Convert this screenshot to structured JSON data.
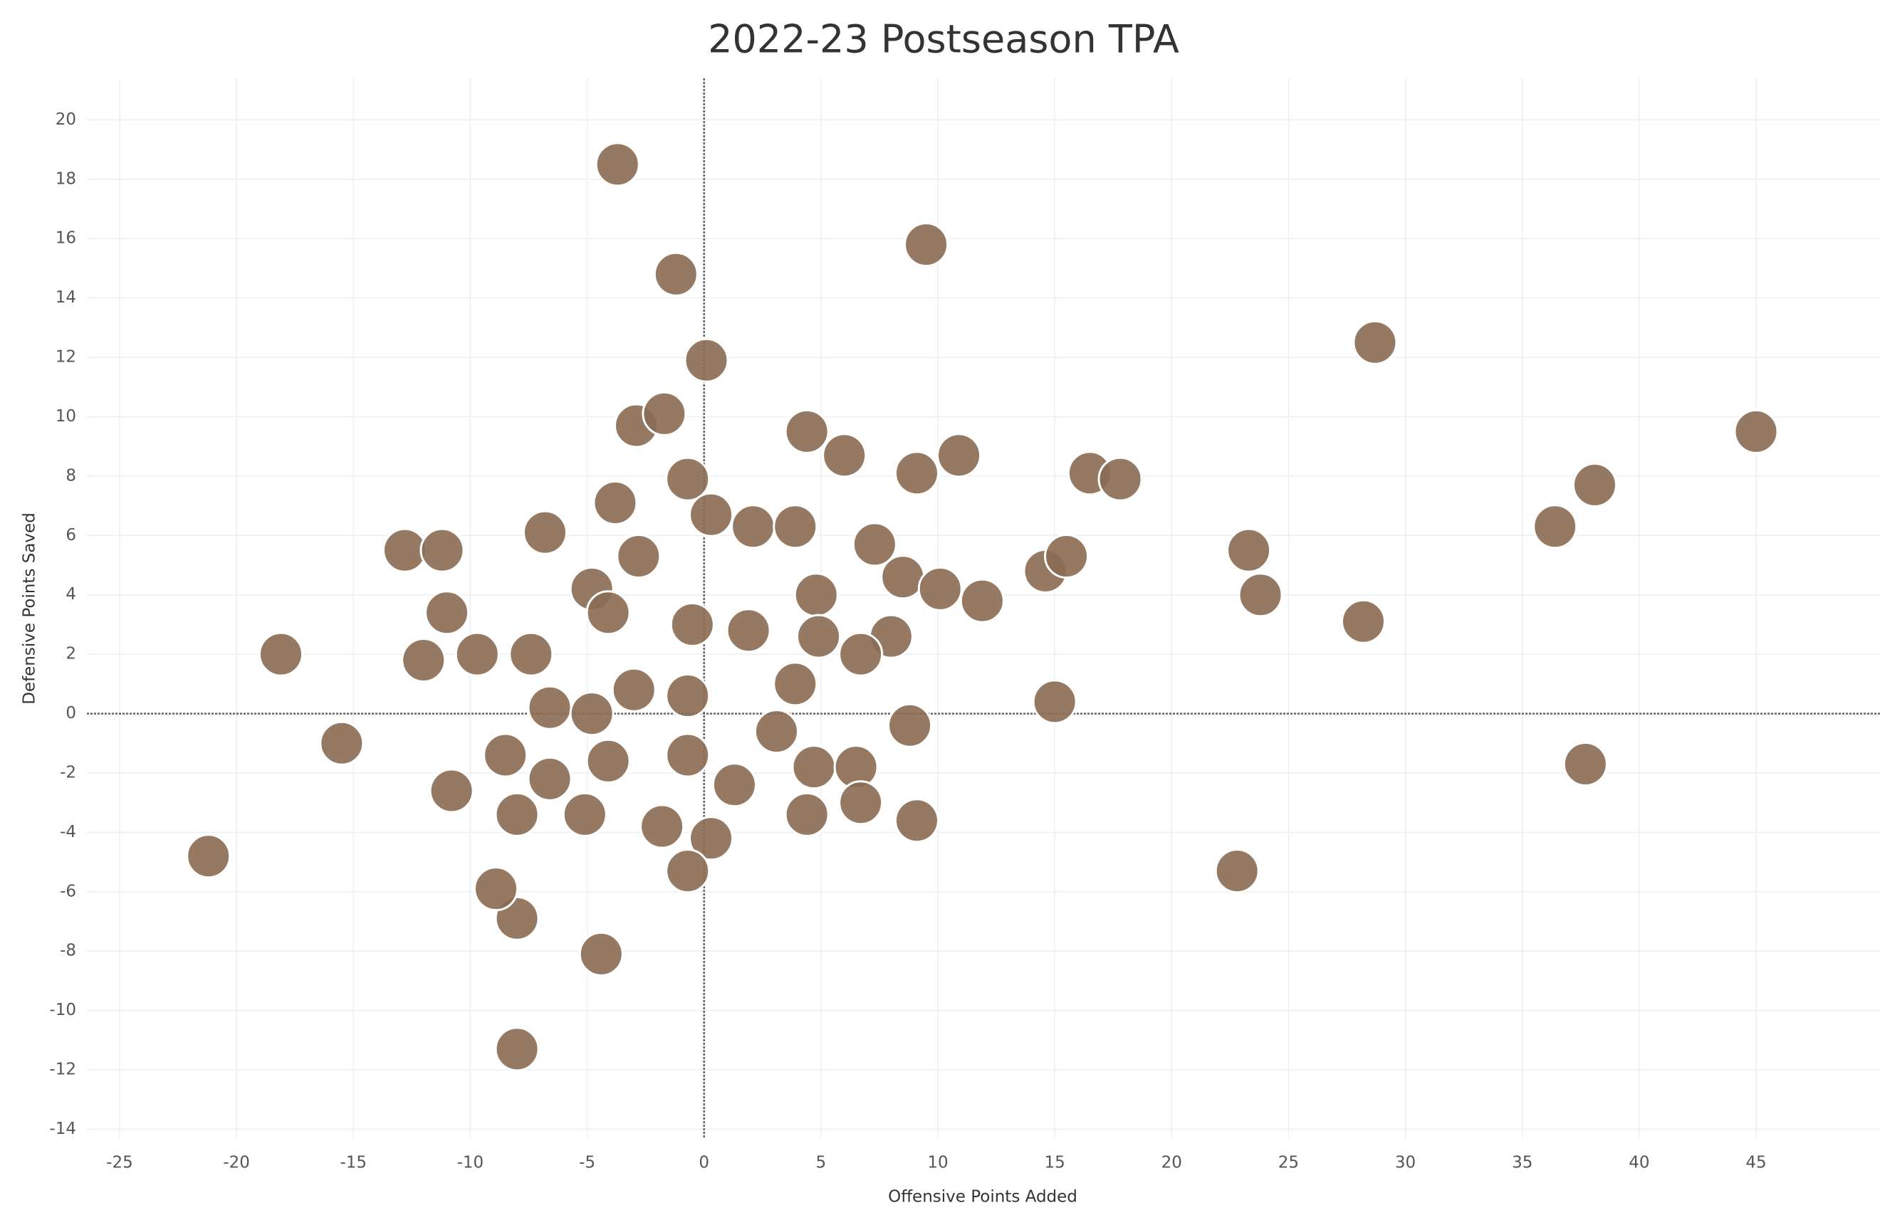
{
  "chart_data": {
    "type": "scatter",
    "title": "2022-23 Postseason TPA",
    "x_label": "Offensive Points Added",
    "y_label": "Defensive Points Saved",
    "xlim": [
      -26.4,
      50.3
    ],
    "ylim": [
      -14.3,
      21.4
    ],
    "xticks": [
      -25,
      -20,
      -15,
      -10,
      -5,
      0,
      5,
      10,
      15,
      20,
      25,
      30,
      35,
      40,
      45
    ],
    "yticks": [
      -14,
      -12,
      -10,
      -8,
      -6,
      -4,
      -2,
      0,
      2,
      4,
      6,
      8,
      10,
      12,
      14,
      16,
      18,
      20
    ],
    "grid": true,
    "color": "#8a6a52",
    "x": [
      -3.7,
      -1.2,
      9.5,
      28.7,
      45.0,
      38.1,
      36.4,
      28.2,
      15.0,
      37.7,
      22.8,
      23.3,
      23.8,
      -18.1,
      -21.2,
      -15.5,
      -12.8,
      -11.2,
      -8.0,
      -4.4,
      -8.0,
      -8.9,
      0.1,
      -2.9,
      -1.7,
      4.4,
      6.0,
      10.9,
      9.1,
      16.5,
      17.8,
      -0.7,
      -6.8,
      -3.8,
      -2.8,
      2.1,
      3.9,
      0.3,
      7.3,
      8.5,
      10.1,
      11.9,
      14.6,
      15.5,
      4.8,
      -4.8,
      -11.0,
      -12.0,
      -9.7,
      -7.4,
      -4.1,
      -0.5,
      1.9,
      4.9,
      8.0,
      6.7,
      -3.0,
      -0.7,
      3.9,
      -6.6,
      -4.8,
      -10.8,
      -8.0,
      -6.6,
      -4.1,
      -0.7,
      1.3,
      4.7,
      6.5,
      8.8,
      4.4,
      6.7,
      9.1,
      -1.8,
      0.3,
      -0.7,
      -5.1,
      3.1,
      -8.5
    ],
    "y": [
      18.5,
      14.8,
      15.8,
      12.5,
      9.5,
      7.7,
      6.3,
      3.1,
      0.4,
      -1.7,
      -5.3,
      5.5,
      4.0,
      2.0,
      -4.8,
      -1.0,
      5.5,
      5.5,
      -11.3,
      -8.1,
      -6.9,
      -5.9,
      11.9,
      9.7,
      10.1,
      9.5,
      8.7,
      8.7,
      8.1,
      8.1,
      7.9,
      7.9,
      6.1,
      7.1,
      5.3,
      6.3,
      6.3,
      6.7,
      5.7,
      4.6,
      4.2,
      3.8,
      4.8,
      5.3,
      4.0,
      4.2,
      3.4,
      1.8,
      2.0,
      2.0,
      3.4,
      3.0,
      2.8,
      2.6,
      2.6,
      2.0,
      0.8,
      0.6,
      1.0,
      0.2,
      0.0,
      -2.6,
      -3.4,
      -2.2,
      -1.6,
      -1.4,
      -2.4,
      -1.8,
      -1.8,
      -0.4,
      -3.4,
      -3.0,
      -3.6,
      -3.8,
      -4.2,
      -5.3,
      -3.4,
      -0.6,
      -1.4
    ]
  }
}
